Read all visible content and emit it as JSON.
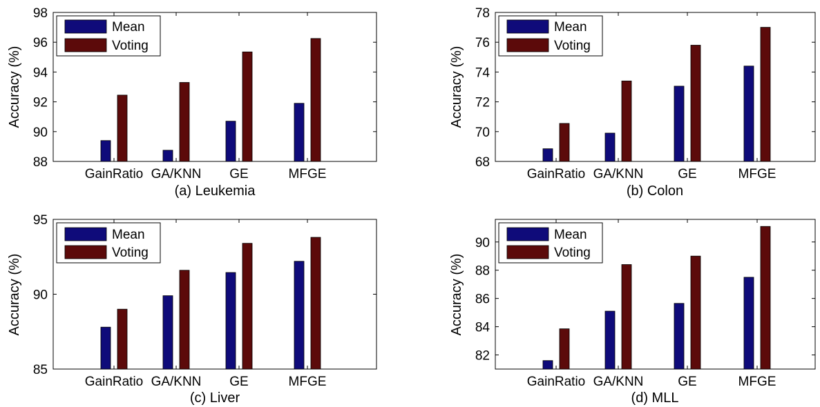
{
  "colors": {
    "mean": "#0f0b7a",
    "voting": "#5c0a0a"
  },
  "chart_data": [
    {
      "type": "bar",
      "title": "(a) Leukemia",
      "ylabel": "Accuracy (%)",
      "ylim": [
        88,
        98
      ],
      "yticks": [
        88,
        90,
        92,
        94,
        96,
        98
      ],
      "categories": [
        "GainRatio",
        "GA/KNN",
        "GE",
        "MFGE"
      ],
      "legend": {
        "position": "top-left"
      },
      "series": [
        {
          "name": "Mean",
          "values": [
            89.4,
            88.75,
            90.7,
            91.9
          ]
        },
        {
          "name": "Voting",
          "values": [
            92.45,
            93.3,
            95.35,
            96.25
          ]
        }
      ]
    },
    {
      "type": "bar",
      "title": "(b) Colon",
      "ylabel": "Accuracy (%)",
      "ylim": [
        68,
        78
      ],
      "yticks": [
        68,
        70,
        72,
        74,
        76,
        78
      ],
      "categories": [
        "GainRatio",
        "GA/KNN",
        "GE",
        "MFGE"
      ],
      "legend": {
        "position": "top-left"
      },
      "series": [
        {
          "name": "Mean",
          "values": [
            68.85,
            69.9,
            73.05,
            74.4
          ]
        },
        {
          "name": "Voting",
          "values": [
            70.55,
            73.4,
            75.8,
            77.0
          ]
        }
      ]
    },
    {
      "type": "bar",
      "title": "(c) Liver",
      "ylabel": "Accuracy (%)",
      "ylim": [
        85,
        95
      ],
      "yticks": [
        85,
        90,
        95
      ],
      "categories": [
        "GainRatio",
        "GA/KNN",
        "GE",
        "MFGE"
      ],
      "legend": {
        "position": "top-left"
      },
      "series": [
        {
          "name": "Mean",
          "values": [
            87.8,
            89.9,
            91.45,
            92.2
          ]
        },
        {
          "name": "Voting",
          "values": [
            89.0,
            91.6,
            93.4,
            93.8
          ]
        }
      ]
    },
    {
      "type": "bar",
      "title": "(d) MLL",
      "ylabel": "Accuracy (%)",
      "ylim": [
        81,
        91.6
      ],
      "yticks": [
        82,
        84,
        86,
        88,
        90
      ],
      "categories": [
        "GainRatio",
        "GA/KNN",
        "GE",
        "MFGE"
      ],
      "legend": {
        "position": "top-left"
      },
      "series": [
        {
          "name": "Mean",
          "values": [
            81.6,
            85.1,
            85.65,
            87.5
          ]
        },
        {
          "name": "Voting",
          "values": [
            83.85,
            88.4,
            89.0,
            91.1
          ]
        }
      ]
    }
  ]
}
